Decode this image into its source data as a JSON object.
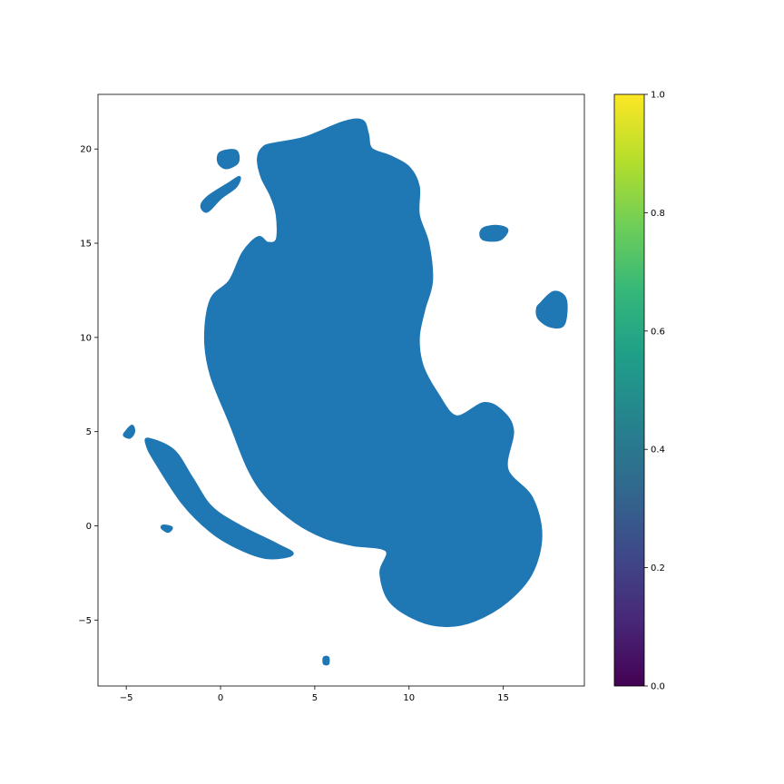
{
  "chart_data": {
    "type": "scatter",
    "title": "",
    "xlabel": "",
    "ylabel": "",
    "xlim": [
      -6.5,
      19.3
    ],
    "ylim": [
      -8.5,
      22.9
    ],
    "x_ticks": [
      -5,
      0,
      5,
      10,
      15
    ],
    "y_ticks": [
      -5,
      0,
      5,
      10,
      15,
      20
    ],
    "x_tick_labels": [
      "−5",
      "0",
      "5",
      "10",
      "15"
    ],
    "y_tick_labels": [
      "−5",
      "0",
      "5",
      "10",
      "15",
      "20"
    ],
    "grid": false,
    "legend": "none",
    "series": [
      {
        "color": "#1f77b4",
        "clusters": [
          {
            "kind": "main",
            "points": [
              [
                3.0,
                20.3
              ],
              [
                4.5,
                20.6
              ],
              [
                6.5,
                21.4
              ],
              [
                7.5,
                21.5
              ],
              [
                7.8,
                20.8
              ],
              [
                8.0,
                20.0
              ],
              [
                9.0,
                19.6
              ],
              [
                10.0,
                19.0
              ],
              [
                10.5,
                18.0
              ],
              [
                10.5,
                16.5
              ],
              [
                11.0,
                15.0
              ],
              [
                11.2,
                13.0
              ],
              [
                10.8,
                11.5
              ],
              [
                10.5,
                10.0
              ],
              [
                10.7,
                8.5
              ],
              [
                11.5,
                7.0
              ],
              [
                12.5,
                5.8
              ],
              [
                14.0,
                6.5
              ],
              [
                15.0,
                6.0
              ],
              [
                15.5,
                5.0
              ],
              [
                15.2,
                3.0
              ],
              [
                16.5,
                1.5
              ],
              [
                17.0,
                -0.5
              ],
              [
                16.5,
                -2.5
              ],
              [
                15.2,
                -4.0
              ],
              [
                13.5,
                -5.0
              ],
              [
                12.0,
                -5.3
              ],
              [
                10.5,
                -5.0
              ],
              [
                9.0,
                -4.0
              ],
              [
                8.5,
                -2.5
              ],
              [
                8.8,
                -1.3
              ],
              [
                7.0,
                -1.0
              ],
              [
                5.5,
                -0.6
              ],
              [
                4.0,
                0.2
              ],
              [
                2.5,
                1.5
              ],
              [
                1.5,
                3.0
              ],
              [
                0.5,
                5.5
              ],
              [
                -0.5,
                8.0
              ],
              [
                -0.8,
                10.0
              ],
              [
                -0.5,
                12.0
              ],
              [
                0.5,
                13.0
              ],
              [
                1.2,
                14.5
              ],
              [
                2.0,
                15.3
              ],
              [
                2.5,
                15.0
              ],
              [
                3.0,
                15.2
              ],
              [
                3.0,
                16.5
              ],
              [
                2.7,
                17.5
              ],
              [
                2.2,
                18.5
              ],
              [
                2.0,
                19.5
              ],
              [
                2.3,
                20.1
              ]
            ]
          },
          {
            "kind": "island",
            "points": [
              [
                0.0,
                19.8
              ],
              [
                0.8,
                19.9
              ],
              [
                0.9,
                19.3
              ],
              [
                0.3,
                19.0
              ],
              [
                -0.1,
                19.3
              ]
            ]
          },
          {
            "kind": "island",
            "points": [
              [
                -1.0,
                17.0
              ],
              [
                -0.6,
                17.5
              ],
              [
                0.5,
                18.2
              ],
              [
                1.0,
                18.5
              ],
              [
                0.8,
                18.0
              ],
              [
                0.0,
                17.4
              ],
              [
                -0.7,
                16.7
              ]
            ]
          },
          {
            "kind": "island",
            "points": [
              [
                14.0,
                15.8
              ],
              [
                14.7,
                15.9
              ],
              [
                15.2,
                15.7
              ],
              [
                14.8,
                15.2
              ],
              [
                14.0,
                15.2
              ],
              [
                13.8,
                15.5
              ]
            ]
          },
          {
            "kind": "island",
            "points": [
              [
                17.0,
                11.8
              ],
              [
                17.7,
                12.4
              ],
              [
                18.3,
                12.0
              ],
              [
                18.2,
                10.7
              ],
              [
                17.5,
                10.6
              ],
              [
                16.9,
                11.0
              ],
              [
                16.8,
                11.5
              ]
            ]
          },
          {
            "kind": "island",
            "points": [
              [
                -5.0,
                5.0
              ],
              [
                -4.7,
                5.3
              ],
              [
                -4.6,
                5.0
              ],
              [
                -4.8,
                4.7
              ],
              [
                -5.1,
                4.8
              ]
            ]
          },
          {
            "kind": "island",
            "points": [
              [
                -3.8,
                4.6
              ],
              [
                -2.5,
                4.0
              ],
              [
                -1.5,
                2.5
              ],
              [
                -0.5,
                1.0
              ],
              [
                1.0,
                0.0
              ],
              [
                3.0,
                -1.0
              ],
              [
                3.8,
                -1.5
              ],
              [
                2.5,
                -1.7
              ],
              [
                1.0,
                -1.2
              ],
              [
                -0.5,
                -0.3
              ],
              [
                -2.0,
                1.2
              ],
              [
                -3.5,
                3.5
              ],
              [
                -3.9,
                4.3
              ]
            ]
          },
          {
            "kind": "island",
            "points": [
              [
                -3.0,
                0.0
              ],
              [
                -2.6,
                -0.1
              ],
              [
                -2.8,
                -0.3
              ],
              [
                -3.1,
                -0.1
              ]
            ]
          },
          {
            "kind": "island",
            "points": [
              [
                5.5,
                -7.0
              ],
              [
                5.7,
                -7.0
              ],
              [
                5.7,
                -7.3
              ],
              [
                5.5,
                -7.3
              ]
            ]
          }
        ]
      }
    ],
    "colorbar": {
      "cmap": "viridis",
      "range": [
        0.0,
        1.0
      ],
      "ticks": [
        "0.0",
        "0.2",
        "0.4",
        "0.6",
        "0.8",
        "1.0"
      ],
      "stops": [
        "#440154",
        "#482878",
        "#3e4989",
        "#31688e",
        "#26828e",
        "#1f9e89",
        "#35b779",
        "#6ece58",
        "#b5de2b",
        "#fde725"
      ]
    }
  }
}
